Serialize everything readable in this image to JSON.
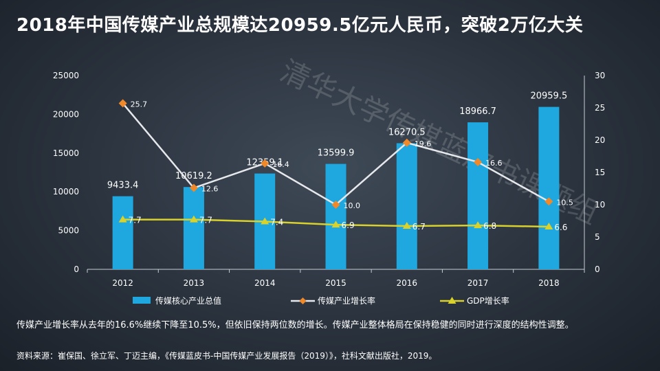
{
  "title": "2018年中国传媒产业总规模达20959.5亿元人民币，突破2万亿大关",
  "watermark": "清华大学传媒蓝皮书课题组",
  "description": "传媒产业增长率从去年的16.6%继续下降至10.5%，但依旧保持两位数的增长。传媒产业整体格局在保持稳健的同时进行深度的结构性调整。",
  "source": "资料来源：崔保国、徐立军、丁迈主编，《传媒蓝皮书-中国传媒产业发展报告（2019）》，社科文献出版社，2019。",
  "colors": {
    "bar": "#1fa8e0",
    "media_line": "#e6e8eb",
    "media_marker": "#f0892a",
    "gdp": "#d9d12c"
  },
  "chart_data": {
    "type": "bar",
    "categories": [
      "2012",
      "2013",
      "2014",
      "2015",
      "2016",
      "2017",
      "2018"
    ],
    "series": [
      {
        "name": "传媒核心产业总值",
        "type": "bar",
        "axis": "left",
        "values": [
          9433.4,
          10619.2,
          12359.1,
          13599.9,
          16270.5,
          18966.7,
          20959.5
        ],
        "labels": [
          "9433.4",
          "10619.2",
          "12359.1",
          "13599.9",
          "16270.5",
          "18966.7",
          "20959.5"
        ]
      },
      {
        "name": "传媒产业增长率",
        "type": "line",
        "axis": "right",
        "values": [
          25.7,
          12.6,
          16.4,
          10.0,
          19.6,
          16.6,
          10.5
        ],
        "labels": [
          "25.7",
          "12.6",
          "16.4",
          "10.0",
          "19.6",
          "16.6",
          "10.5"
        ]
      },
      {
        "name": "GDP增长率",
        "type": "line",
        "axis": "right",
        "values": [
          7.7,
          7.7,
          7.4,
          6.9,
          6.7,
          6.8,
          6.6
        ],
        "labels": [
          "7.7",
          "7.7",
          "7.4",
          "6.9",
          "6.7",
          "6.8",
          "6.6"
        ]
      }
    ],
    "y_left": {
      "ylim": [
        0,
        25000
      ],
      "ticks": [
        "0",
        "5000",
        "10000",
        "15000",
        "20000",
        "25000"
      ]
    },
    "y_right": {
      "ylim": [
        0,
        30
      ],
      "ticks": [
        "0",
        "5",
        "10",
        "15",
        "20",
        "25",
        "30"
      ]
    },
    "legend": "bottom",
    "grid": false
  }
}
